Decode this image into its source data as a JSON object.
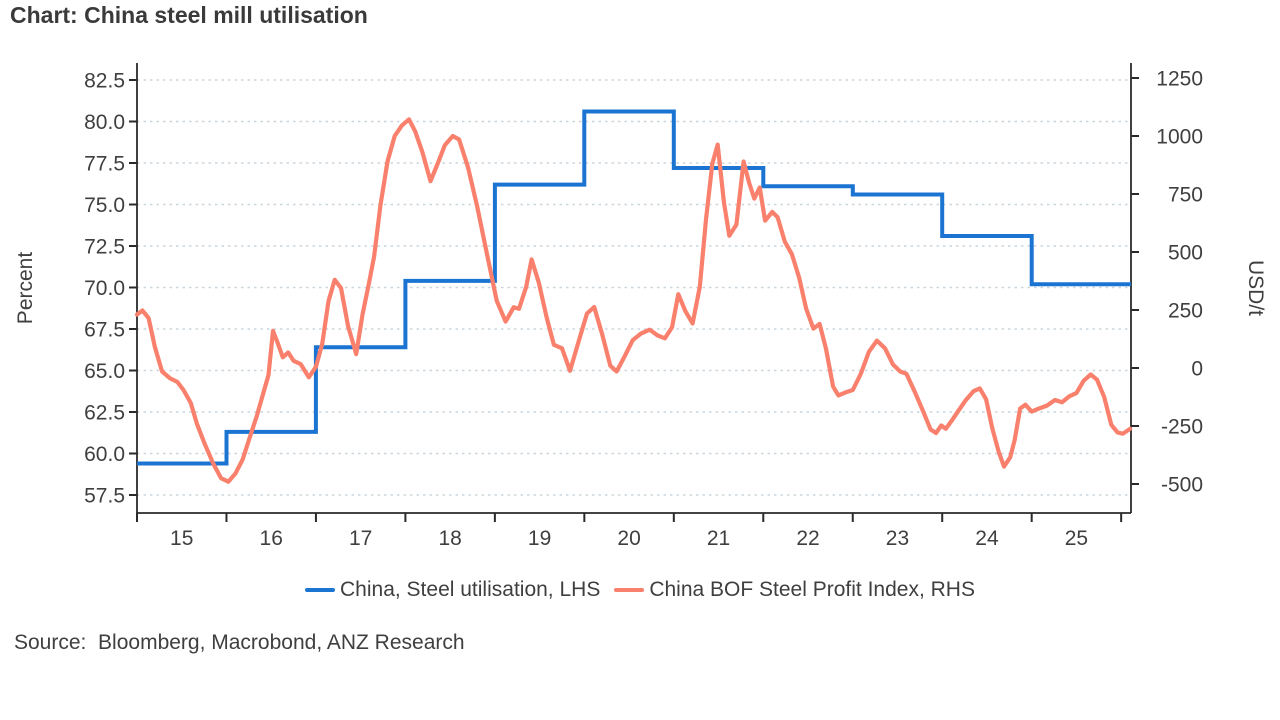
{
  "title": "Chart: China steel mill utilisation",
  "source": "Source:  Bloomberg, Macrobond, ANZ Research",
  "legend": {
    "items": [
      {
        "label": "China, Steel utilisation, LHS",
        "color": "#1b74d2"
      },
      {
        "label": "China BOF Steel Profit Index, RHS",
        "color": "#f9806c"
      }
    ]
  },
  "colors": {
    "steel_utilisation": "#1b74d2",
    "profit_index": "#f9806c",
    "gridline": "#c9d6dd",
    "axis": "#2a2a2a",
    "text": "#3f3f3f"
  },
  "chart_data": {
    "type": "line",
    "title": "Chart: China steel mill utilisation",
    "x_domain": [
      2014.5,
      2025.61
    ],
    "axes": {
      "left": {
        "label": "Percent",
        "range": [
          57.5,
          82.5
        ],
        "tick_values": [
          82.5,
          80.0,
          77.5,
          75.0,
          72.5,
          70.0,
          67.5,
          65.0,
          62.5,
          60.0,
          57.5
        ],
        "tick_labels": [
          "82.5",
          "80.0",
          "77.5",
          "75.0",
          "72.5",
          "70.0",
          "67.5",
          "65.0",
          "62.5",
          "60.0",
          "57.5"
        ]
      },
      "right": {
        "label": "USD/t",
        "range": [
          -500,
          1250
        ],
        "tick_values": [
          1250,
          1000,
          750,
          500,
          250,
          0,
          -250,
          -500
        ],
        "tick_labels": [
          "1250",
          "1000",
          "750",
          "500",
          "250",
          "0",
          "-250",
          "-500"
        ]
      },
      "x": {
        "tick_positions": [
          2014.5,
          2015.5,
          2016.5,
          2017.5,
          2018.5,
          2019.5,
          2020.5,
          2021.5,
          2022.5,
          2023.5,
          2024.5,
          2025.5
        ],
        "label_positions": [
          2015,
          2016,
          2017,
          2018,
          2019,
          2020,
          2021,
          2022,
          2023,
          2024,
          2025
        ],
        "tick_labels": [
          "15",
          "16",
          "17",
          "18",
          "19",
          "20",
          "21",
          "22",
          "23",
          "24",
          "25"
        ]
      },
      "grid": {
        "show": true,
        "dash": true
      }
    },
    "legend_position": "bottom",
    "series": [
      {
        "name": "China, Steel utilisation, LHS",
        "axis": "left",
        "style": "step",
        "color": "#1b74d2",
        "years": [
          2015,
          2016,
          2017,
          2018,
          2019,
          2020,
          2021,
          2022,
          2023,
          2024,
          2025
        ],
        "values": [
          59.4,
          61.3,
          66.4,
          70.4,
          76.2,
          80.6,
          77.2,
          76.1,
          75.6,
          73.1,
          70.2
        ]
      },
      {
        "name": "China BOF Steel Profit Index, RHS",
        "axis": "right",
        "style": "line",
        "color": "#f9806c",
        "points": [
          [
            2014.5,
            230
          ],
          [
            2014.56,
            248
          ],
          [
            2014.63,
            215
          ],
          [
            2014.7,
            90
          ],
          [
            2014.78,
            -15
          ],
          [
            2014.87,
            -45
          ],
          [
            2014.95,
            -60
          ],
          [
            2015.02,
            -95
          ],
          [
            2015.1,
            -150
          ],
          [
            2015.17,
            -240
          ],
          [
            2015.26,
            -330
          ],
          [
            2015.35,
            -410
          ],
          [
            2015.44,
            -475
          ],
          [
            2015.52,
            -490
          ],
          [
            2015.6,
            -455
          ],
          [
            2015.68,
            -395
          ],
          [
            2015.76,
            -300
          ],
          [
            2015.84,
            -205
          ],
          [
            2015.91,
            -110
          ],
          [
            2015.97,
            -30
          ],
          [
            2016.02,
            160
          ],
          [
            2016.07,
            110
          ],
          [
            2016.13,
            46
          ],
          [
            2016.19,
            67
          ],
          [
            2016.25,
            31
          ],
          [
            2016.33,
            17
          ],
          [
            2016.42,
            -40
          ],
          [
            2016.5,
            5
          ],
          [
            2016.57,
            103
          ],
          [
            2016.64,
            288
          ],
          [
            2016.71,
            380
          ],
          [
            2016.78,
            345
          ],
          [
            2016.86,
            180
          ],
          [
            2016.95,
            60
          ],
          [
            2017.02,
            230
          ],
          [
            2017.09,
            360
          ],
          [
            2017.15,
            480
          ],
          [
            2017.22,
            700
          ],
          [
            2017.3,
            890
          ],
          [
            2017.38,
            1000
          ],
          [
            2017.46,
            1045
          ],
          [
            2017.54,
            1072
          ],
          [
            2017.61,
            1020
          ],
          [
            2017.69,
            930
          ],
          [
            2017.78,
            805
          ],
          [
            2017.86,
            880
          ],
          [
            2017.94,
            960
          ],
          [
            2018.03,
            1000
          ],
          [
            2018.1,
            985
          ],
          [
            2018.2,
            865
          ],
          [
            2018.3,
            700
          ],
          [
            2018.41,
            495
          ],
          [
            2018.52,
            290
          ],
          [
            2018.62,
            200
          ],
          [
            2018.71,
            262
          ],
          [
            2018.77,
            255
          ],
          [
            2018.85,
            350
          ],
          [
            2018.91,
            468
          ],
          [
            2018.99,
            370
          ],
          [
            2019.08,
            215
          ],
          [
            2019.16,
            100
          ],
          [
            2019.25,
            85
          ],
          [
            2019.34,
            -12
          ],
          [
            2019.44,
            120
          ],
          [
            2019.53,
            235
          ],
          [
            2019.61,
            263
          ],
          [
            2019.7,
            145
          ],
          [
            2019.79,
            10
          ],
          [
            2019.86,
            -15
          ],
          [
            2019.95,
            50
          ],
          [
            2020.04,
            120
          ],
          [
            2020.13,
            148
          ],
          [
            2020.23,
            165
          ],
          [
            2020.32,
            140
          ],
          [
            2020.4,
            128
          ],
          [
            2020.48,
            175
          ],
          [
            2020.55,
            318
          ],
          [
            2020.63,
            245
          ],
          [
            2020.71,
            192
          ],
          [
            2020.79,
            350
          ],
          [
            2020.86,
            640
          ],
          [
            2020.93,
            880
          ],
          [
            2020.99,
            963
          ],
          [
            2021.06,
            715
          ],
          [
            2021.12,
            570
          ],
          [
            2021.2,
            618
          ],
          [
            2021.28,
            890
          ],
          [
            2021.34,
            800
          ],
          [
            2021.4,
            730
          ],
          [
            2021.46,
            778
          ],
          [
            2021.52,
            635
          ],
          [
            2021.6,
            673
          ],
          [
            2021.66,
            650
          ],
          [
            2021.74,
            545
          ],
          [
            2021.82,
            490
          ],
          [
            2021.9,
            390
          ],
          [
            2021.98,
            255
          ],
          [
            2022.06,
            170
          ],
          [
            2022.13,
            190
          ],
          [
            2022.2,
            85
          ],
          [
            2022.28,
            -80
          ],
          [
            2022.34,
            -118
          ],
          [
            2022.42,
            -105
          ],
          [
            2022.5,
            -95
          ],
          [
            2022.59,
            -25
          ],
          [
            2022.68,
            70
          ],
          [
            2022.77,
            118
          ],
          [
            2022.86,
            85
          ],
          [
            2022.95,
            15
          ],
          [
            2023.03,
            -15
          ],
          [
            2023.1,
            -25
          ],
          [
            2023.19,
            -100
          ],
          [
            2023.28,
            -180
          ],
          [
            2023.37,
            -265
          ],
          [
            2023.43,
            -280
          ],
          [
            2023.49,
            -248
          ],
          [
            2023.54,
            -262
          ],
          [
            2023.6,
            -230
          ],
          [
            2023.68,
            -185
          ],
          [
            2023.76,
            -140
          ],
          [
            2023.85,
            -100
          ],
          [
            2023.92,
            -88
          ],
          [
            2023.99,
            -135
          ],
          [
            2024.06,
            -260
          ],
          [
            2024.13,
            -360
          ],
          [
            2024.19,
            -425
          ],
          [
            2024.26,
            -385
          ],
          [
            2024.31,
            -310
          ],
          [
            2024.37,
            -175
          ],
          [
            2024.43,
            -158
          ],
          [
            2024.5,
            -188
          ],
          [
            2024.58,
            -175
          ],
          [
            2024.67,
            -162
          ],
          [
            2024.76,
            -138
          ],
          [
            2024.84,
            -148
          ],
          [
            2024.92,
            -122
          ],
          [
            2025.0,
            -108
          ],
          [
            2025.08,
            -55
          ],
          [
            2025.16,
            -28
          ],
          [
            2025.23,
            -50
          ],
          [
            2025.31,
            -125
          ],
          [
            2025.39,
            -245
          ],
          [
            2025.46,
            -278
          ],
          [
            2025.52,
            -283
          ],
          [
            2025.6,
            -262
          ]
        ]
      }
    ]
  }
}
